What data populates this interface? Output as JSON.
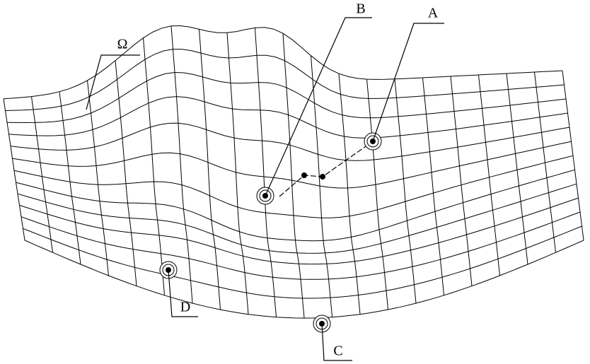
{
  "labels": {
    "omega": "Ω",
    "a": "A",
    "b": "B",
    "c": "C",
    "d": "D"
  }
}
